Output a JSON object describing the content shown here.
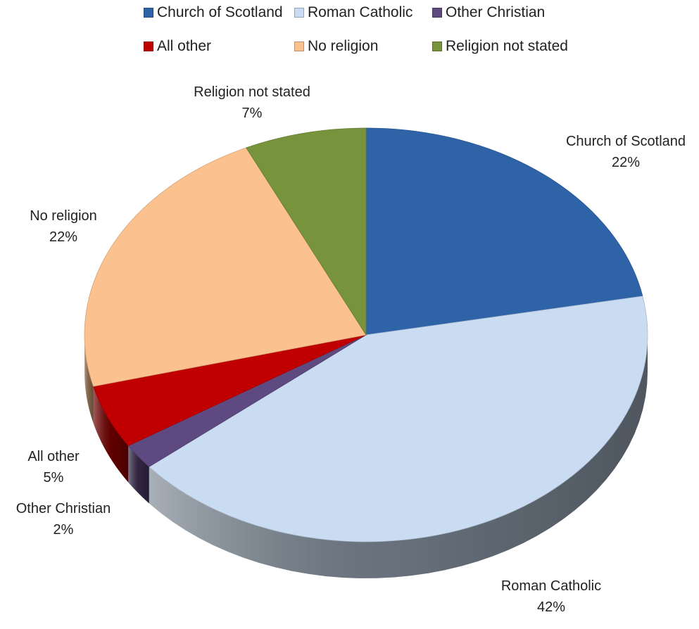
{
  "chart_data": {
    "type": "pie",
    "title": "",
    "categories": [
      "Church of Scotland",
      "Roman Catholic",
      "Other Christian",
      "All other",
      "No religion",
      "Religion not stated"
    ],
    "values": [
      22,
      42,
      2,
      5,
      22,
      7
    ],
    "labels": [
      "22%",
      "42%",
      "2%",
      "5%",
      "22%",
      "7%"
    ],
    "colors": [
      "#2e63a8",
      "#c9dcf2",
      "#5e4a80",
      "#c00000",
      "#fbc18f",
      "#77933c"
    ],
    "legend_position": "top",
    "style": "3d-exploded-none"
  }
}
